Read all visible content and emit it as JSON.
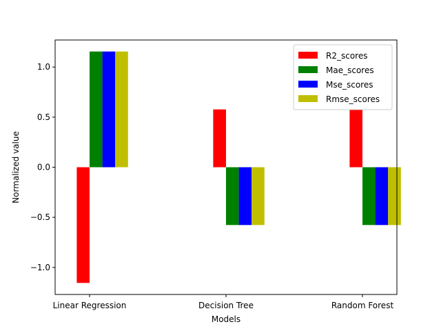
{
  "chart_data": {
    "type": "bar",
    "title": "",
    "xlabel": "Models",
    "ylabel": "Normalized value",
    "categories": [
      "Linear Regression",
      "Decision Tree",
      "Random Forest"
    ],
    "series": [
      {
        "name": "R2_scores",
        "color": "#ff0000",
        "values": [
          -1.155,
          0.577,
          0.577
        ]
      },
      {
        "name": "Mae_scores",
        "color": "#008000",
        "values": [
          1.155,
          -0.577,
          -0.577
        ]
      },
      {
        "name": "Mse_scores",
        "color": "#0000ff",
        "values": [
          1.155,
          -0.577,
          -0.577
        ]
      },
      {
        "name": "Rmse_scores",
        "color": "#bfbf00",
        "values": [
          1.155,
          -0.577,
          -0.577
        ]
      }
    ],
    "ylim": [
      -1.27,
      1.27
    ],
    "yticks": [
      -1.0,
      -0.5,
      0.0,
      0.5,
      1.0
    ],
    "ytick_labels": [
      "−1.0",
      "−0.5",
      "0.0",
      "0.5",
      "1.0"
    ],
    "legend_position": "upper-right",
    "grid": false
  }
}
